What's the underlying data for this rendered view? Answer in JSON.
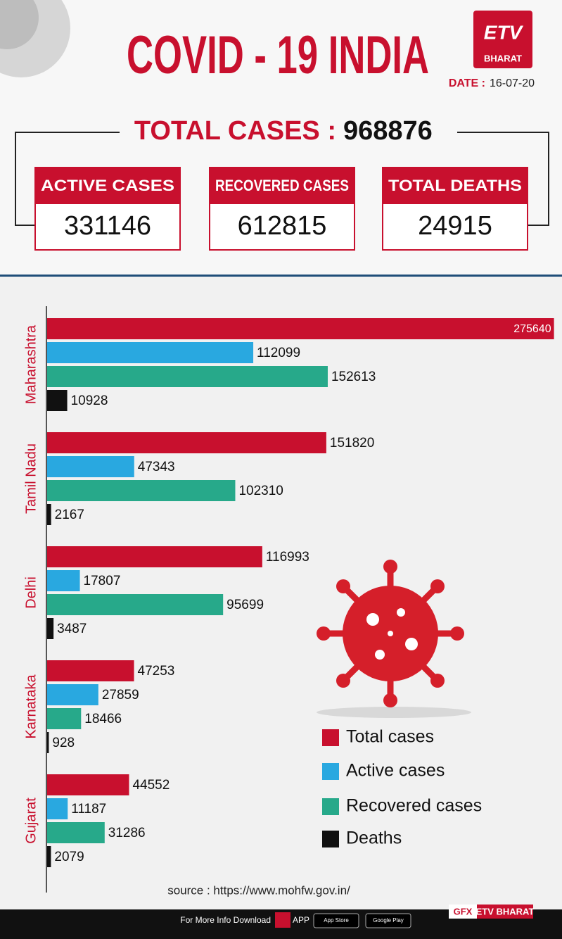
{
  "header": {
    "title": "COVID - 19 INDIA",
    "logo": "ETV",
    "logo_sub": "BHARAT",
    "date_label": "DATE :",
    "date": "16-07-20"
  },
  "totals": {
    "label": "TOTAL CASES :",
    "value": 968876,
    "cards": [
      {
        "label": "ACTIVE CASES",
        "value": 331146
      },
      {
        "label": "RECOVERED CASES",
        "value": 612815
      },
      {
        "label": "TOTAL DEATHS",
        "value": 24915
      }
    ]
  },
  "chart_data": {
    "type": "bar",
    "orientation": "horizontal",
    "categories": [
      "Maharashtra",
      "Tamil Nadu",
      "Delhi",
      "Karnataka",
      "Gujarat"
    ],
    "series": [
      {
        "name": "Total cases",
        "color": "#c8102e",
        "values": [
          275640,
          151820,
          116993,
          47253,
          44552
        ]
      },
      {
        "name": "Active cases",
        "color": "#29a8e0",
        "values": [
          112099,
          47343,
          17807,
          27859,
          11187
        ]
      },
      {
        "name": "Recovered cases",
        "color": "#27a98a",
        "values": [
          152613,
          102310,
          95699,
          18466,
          31286
        ]
      },
      {
        "name": "Deaths",
        "color": "#111111",
        "values": [
          10928,
          2167,
          3487,
          928,
          2079
        ]
      }
    ],
    "xlim": [
      0,
      280000
    ],
    "legend": "lower right"
  },
  "footer": {
    "source": "source : https://www.mohfw.gov.in/",
    "download": "For More Info Download",
    "app": "APP",
    "app_store": "App Store",
    "google_play": "Google Play",
    "gfx": "GFX",
    "brand": "ETV BHARAT"
  }
}
